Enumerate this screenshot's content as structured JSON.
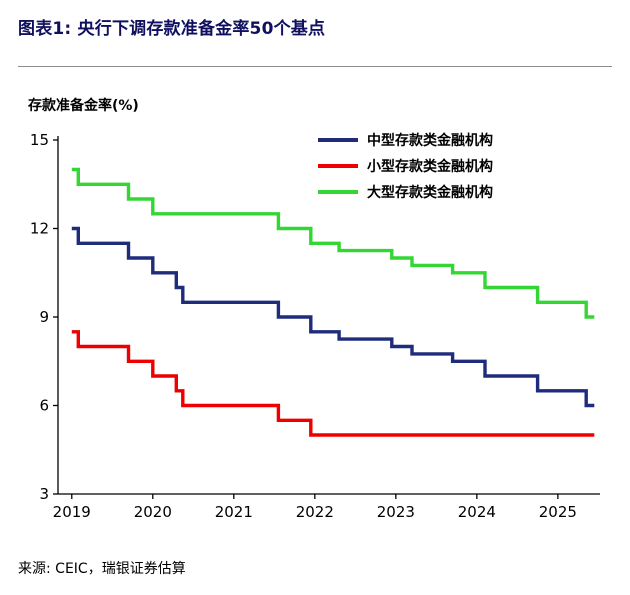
{
  "style": {
    "title_color": "#10105F",
    "axis_color": "#000000",
    "separator_color": "#8c8c8c"
  },
  "chart_data": {
    "type": "line",
    "subtype": "step",
    "title": "图表1: 央行下调存款准备金率50个基点",
    "ylabel": "存款准备金率(%)",
    "source": "来源: CEIC，瑞银证券估算",
    "legend_position": "top-right",
    "grid": false,
    "ylim": [
      3,
      15
    ],
    "xlim": [
      2018.83,
      2025.52
    ],
    "x_end": 2025.45,
    "y_ticks": [
      15,
      12,
      9,
      6,
      3
    ],
    "x_ticks": [
      2019,
      2020,
      2021,
      2022,
      2023,
      2024,
      2025
    ],
    "series": [
      {
        "name": "中型存款类金融机构",
        "color": "#1F2B7B",
        "points": [
          [
            2019.0,
            12.0
          ],
          [
            2019.08,
            11.5
          ],
          [
            2019.7,
            11.0
          ],
          [
            2020.0,
            10.5
          ],
          [
            2020.29,
            10.0
          ],
          [
            2020.37,
            9.5
          ],
          [
            2021.55,
            9.0
          ],
          [
            2021.95,
            8.5
          ],
          [
            2022.3,
            8.25
          ],
          [
            2022.95,
            8.0
          ],
          [
            2023.2,
            7.75
          ],
          [
            2023.7,
            7.5
          ],
          [
            2024.1,
            7.0
          ],
          [
            2024.75,
            6.5
          ],
          [
            2025.35,
            6.0
          ]
        ]
      },
      {
        "name": "小型存款类金融机构",
        "color": "#EE0000",
        "points": [
          [
            2019.0,
            8.5
          ],
          [
            2019.08,
            8.0
          ],
          [
            2019.7,
            7.5
          ],
          [
            2020.0,
            7.0
          ],
          [
            2020.29,
            6.5
          ],
          [
            2020.37,
            6.0
          ],
          [
            2021.55,
            5.5
          ],
          [
            2021.95,
            5.0
          ]
        ]
      },
      {
        "name": "大型存款类金融机构",
        "color": "#33D633",
        "points": [
          [
            2019.0,
            14.0
          ],
          [
            2019.08,
            13.5
          ],
          [
            2019.7,
            13.0
          ],
          [
            2020.0,
            12.5
          ],
          [
            2021.55,
            12.0
          ],
          [
            2021.95,
            11.5
          ],
          [
            2022.3,
            11.25
          ],
          [
            2022.95,
            11.0
          ],
          [
            2023.2,
            10.75
          ],
          [
            2023.7,
            10.5
          ],
          [
            2024.1,
            10.0
          ],
          [
            2024.75,
            9.5
          ],
          [
            2025.35,
            9.0
          ]
        ]
      }
    ]
  }
}
